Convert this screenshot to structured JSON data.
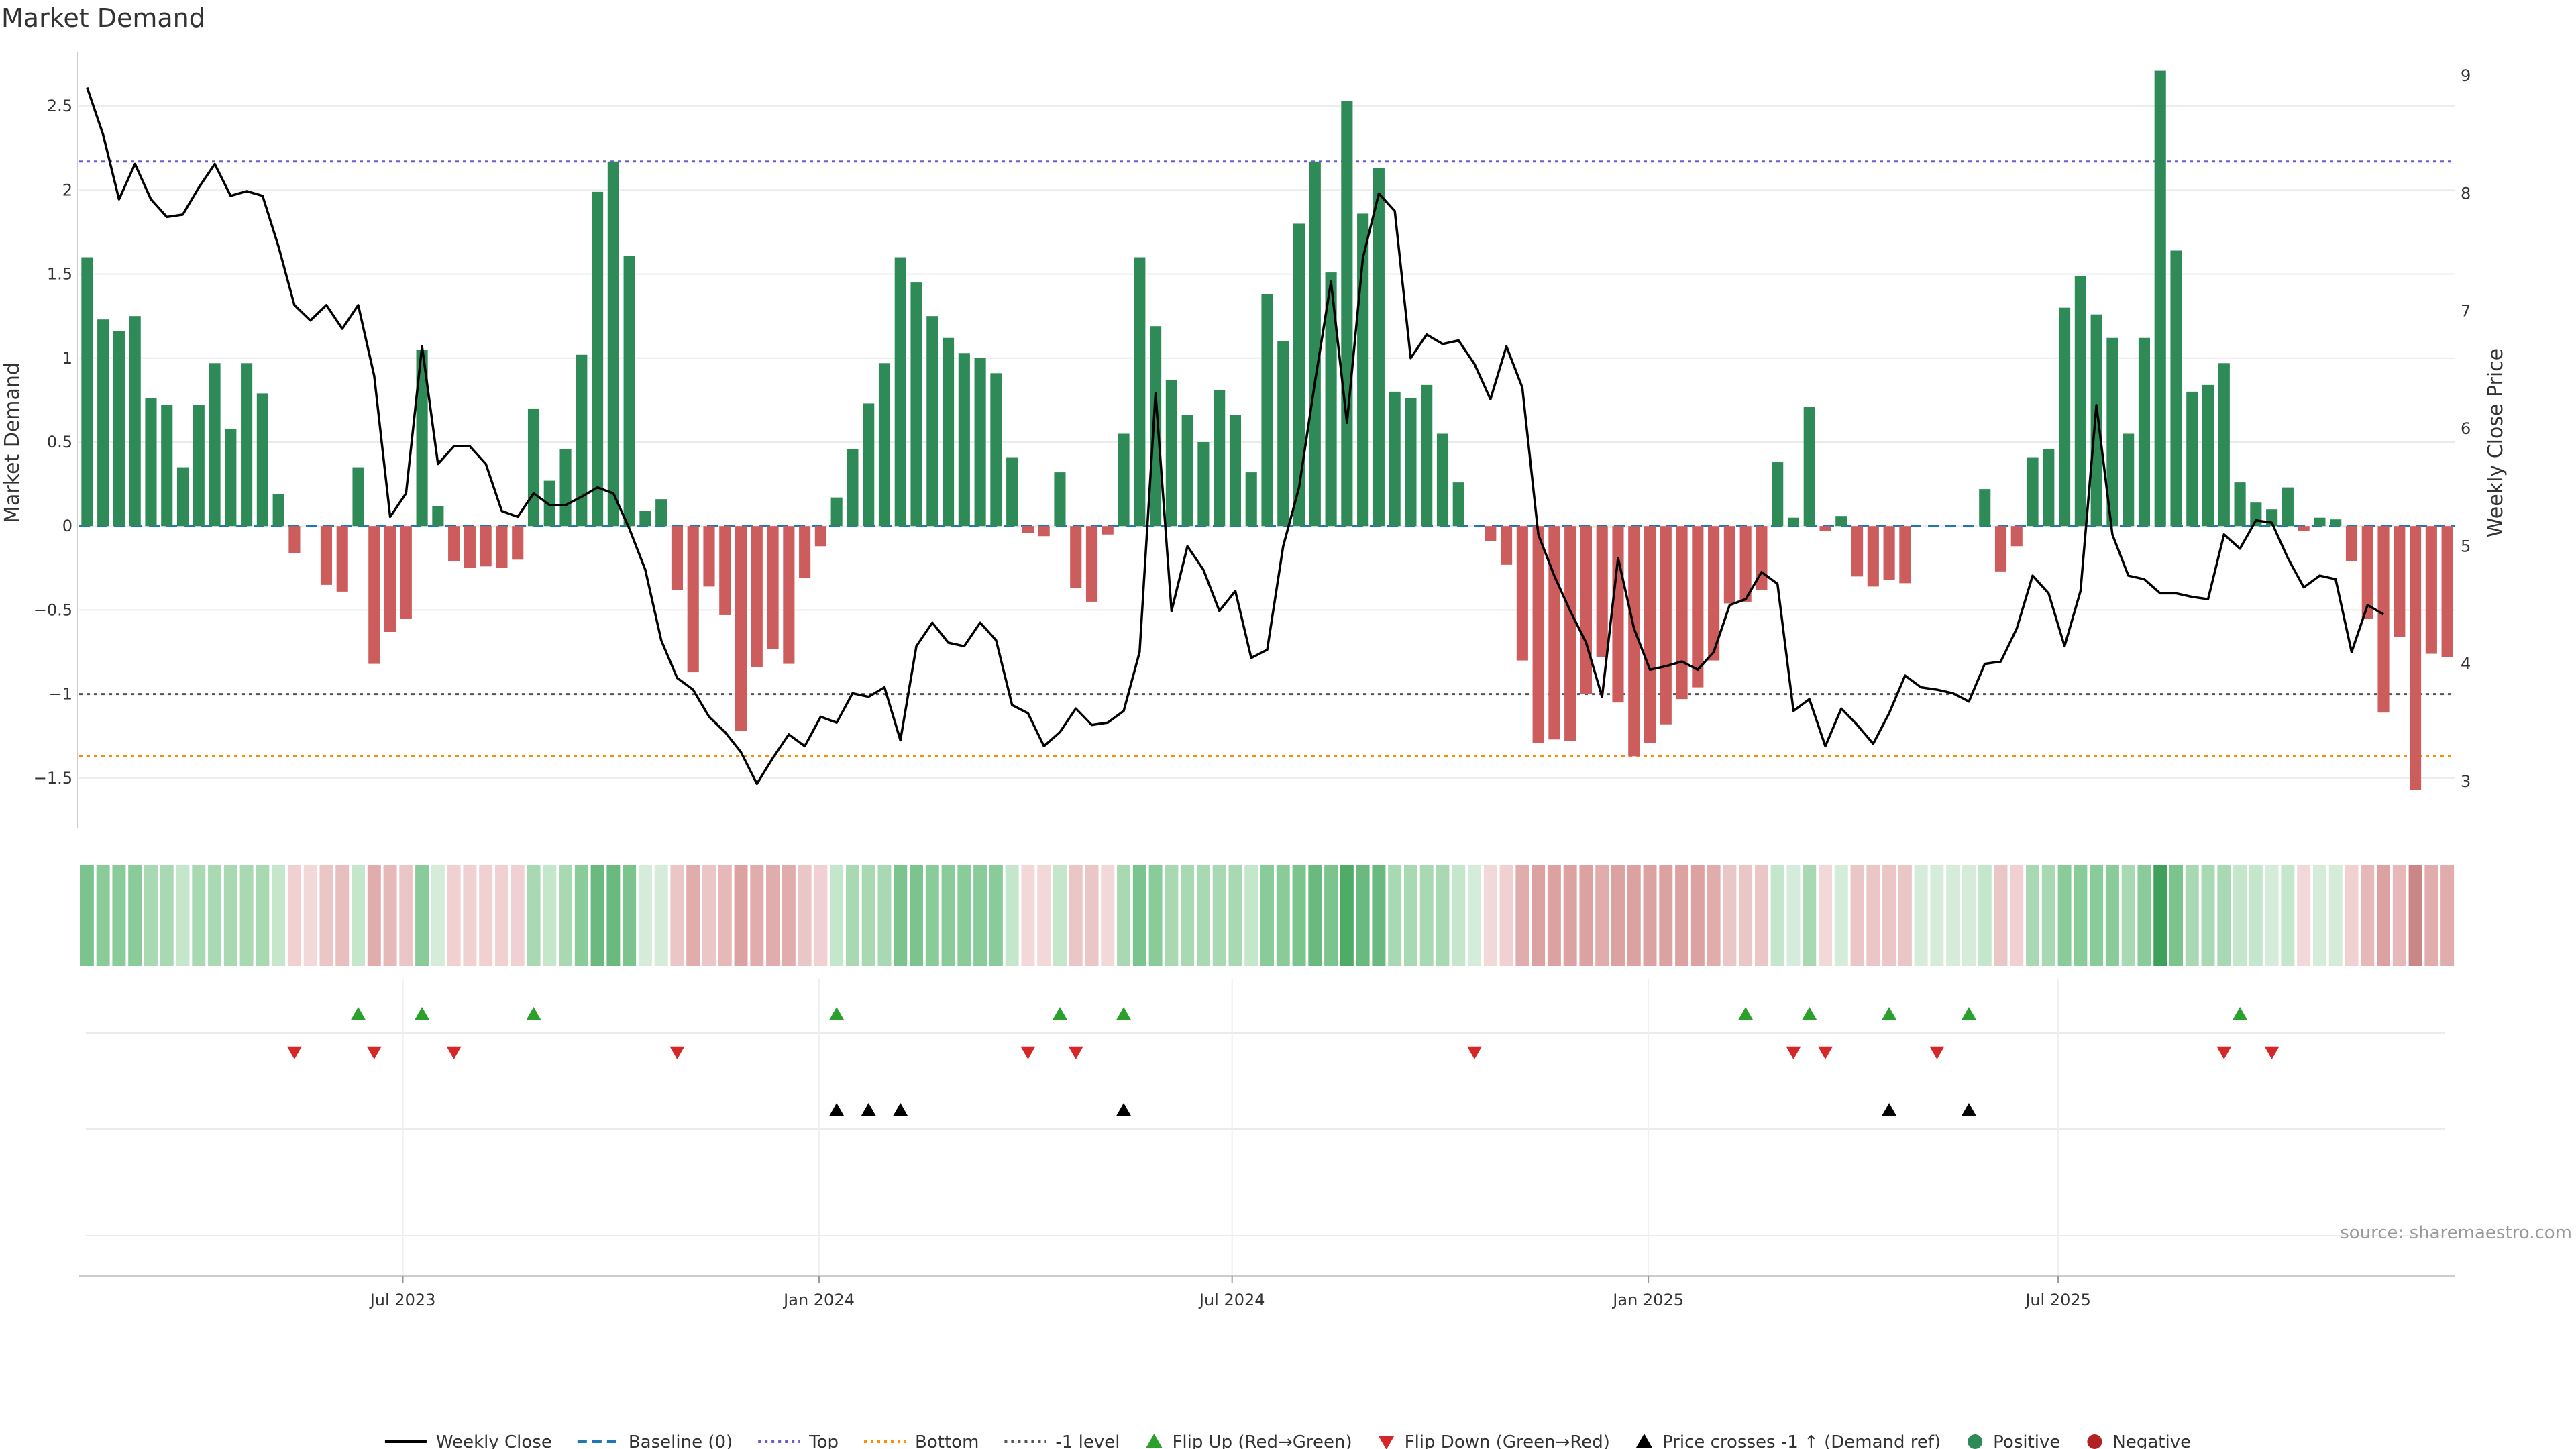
{
  "chart_data": {
    "type": "bar",
    "title": "Market Demand",
    "ylabel": "Market Demand",
    "y2label": "Weekly Close Price",
    "source": "source: sharemaestro.com",
    "ylim": [
      -1.8,
      2.82
    ],
    "y2lim": [
      2.6,
      9.2
    ],
    "y_ticks": [
      "2.5",
      "2",
      "1.5",
      "1",
      "0.5",
      "0",
      "−0.5",
      "−1",
      "−1.5"
    ],
    "y_tick_values": [
      2.5,
      2,
      1.5,
      1,
      0.5,
      0,
      -0.5,
      -1,
      -1.5
    ],
    "y2_ticks": [
      "9",
      "8",
      "7",
      "6",
      "5",
      "4",
      "3"
    ],
    "y2_tick_values": [
      9,
      8,
      7,
      6,
      5,
      4,
      3
    ],
    "x_ticks": [
      {
        "label": "Jul 2023",
        "week": 20.3
      },
      {
        "label": "Jan 2024",
        "week": 46.4
      },
      {
        "label": "Jul 2024",
        "week": 72.3
      },
      {
        "label": "Jan 2025",
        "week": 98.4
      },
      {
        "label": "Jul 2025",
        "week": 124.1
      }
    ],
    "reference_lines": {
      "top": 2.17,
      "bottom": -1.37,
      "minus_one": -1.0,
      "baseline": 0
    },
    "colors": {
      "positive": "#2e8b57",
      "negative": "#cd5c5c",
      "close": "#000000",
      "top": "#6a5acd",
      "bottom": "#ff8c00",
      "minus_one": "#555555",
      "baseline": "#1f77b4",
      "flip_up": "#2ca02c",
      "flip_down": "#d62728"
    },
    "demand": [
      1.6,
      1.23,
      1.16,
      1.25,
      0.76,
      0.72,
      0.35,
      0.72,
      0.97,
      0.58,
      0.97,
      0.79,
      0.19,
      -0.16,
      0.0,
      -0.35,
      -0.39,
      0.35,
      -0.82,
      -0.63,
      -0.55,
      1.05,
      0.12,
      -0.21,
      -0.25,
      -0.24,
      -0.25,
      -0.2,
      0.7,
      0.27,
      0.46,
      1.02,
      1.99,
      2.17,
      1.61,
      0.09,
      0.16,
      -0.38,
      -0.87,
      -0.36,
      -0.53,
      -1.22,
      -0.84,
      -0.73,
      -0.82,
      -0.31,
      -0.12,
      0.17,
      0.46,
      0.73,
      0.97,
      1.6,
      1.45,
      1.25,
      1.12,
      1.03,
      1.0,
      0.91,
      0.41,
      -0.04,
      -0.06,
      0.32,
      -0.37,
      -0.45,
      -0.05,
      0.55,
      1.6,
      1.19,
      0.87,
      0.66,
      0.5,
      0.81,
      0.66,
      0.32,
      1.38,
      1.1,
      1.8,
      2.17,
      1.51,
      2.53,
      1.86,
      2.13,
      0.8,
      0.76,
      0.84,
      0.55,
      0.26,
      0.0,
      -0.09,
      -0.23,
      -0.8,
      -1.29,
      -1.27,
      -1.28,
      -1.0,
      -0.78,
      -1.05,
      -1.37,
      -1.29,
      -1.18,
      -1.03,
      -0.96,
      -0.8,
      -0.46,
      -0.45,
      -0.38,
      0.38,
      0.05,
      0.71,
      -0.03,
      0.06,
      -0.3,
      -0.36,
      -0.32,
      -0.34,
      0.0,
      0.0,
      0.0,
      0.0,
      0.22,
      -0.27,
      -0.12,
      0.41,
      0.46,
      1.3,
      1.49,
      1.26,
      1.12,
      0.55,
      1.12,
      2.71,
      1.64,
      0.8,
      0.84,
      0.97,
      0.26,
      0.14,
      0.1,
      0.23,
      -0.03,
      0.05,
      0.04,
      -0.21,
      -0.55,
      -1.11,
      -0.66,
      -1.57,
      -0.76,
      -0.78
    ],
    "close": [
      8.9,
      8.5,
      7.95,
      8.25,
      7.95,
      7.8,
      7.82,
      8.05,
      8.25,
      7.98,
      8.02,
      7.98,
      7.55,
      7.05,
      6.92,
      7.05,
      6.85,
      7.05,
      6.45,
      5.25,
      5.45,
      6.7,
      5.7,
      5.85,
      5.85,
      5.7,
      5.3,
      5.25,
      5.45,
      5.35,
      5.35,
      5.42,
      5.5,
      5.45,
      5.15,
      4.8,
      4.2,
      3.88,
      3.78,
      3.55,
      3.42,
      3.25,
      2.98,
      3.2,
      3.4,
      3.3,
      3.55,
      3.5,
      3.75,
      3.72,
      3.8,
      3.35,
      4.15,
      4.35,
      4.18,
      4.15,
      4.35,
      4.2,
      3.65,
      3.58,
      3.3,
      3.42,
      3.62,
      3.48,
      3.5,
      3.6,
      4.1,
      6.3,
      4.45,
      5.0,
      4.8,
      4.45,
      4.62,
      4.05,
      4.12,
      5.0,
      5.5,
      6.4,
      7.25,
      6.05,
      7.45,
      8.0,
      7.85,
      6.6,
      6.8,
      6.72,
      6.75,
      6.55,
      6.25,
      6.7,
      6.35,
      5.1,
      4.75,
      4.45,
      4.18,
      3.72,
      4.9,
      4.3,
      3.95,
      3.98,
      4.02,
      3.95,
      4.1,
      4.5,
      4.55,
      4.78,
      4.68,
      3.6,
      3.7,
      3.3,
      3.62,
      3.48,
      3.32,
      3.58,
      3.9,
      3.8,
      3.78,
      3.75,
      3.68,
      4.0,
      4.02,
      4.3,
      4.75,
      4.6,
      4.15,
      4.62,
      6.2,
      5.1,
      4.75,
      4.72,
      4.6,
      4.6,
      4.57,
      4.55,
      5.1,
      4.98,
      5.22,
      5.2,
      4.9,
      4.65,
      4.75,
      4.72,
      4.1,
      4.5,
      4.42
    ],
    "strip_colors": [
      "#7cc48d",
      "#8acb9a",
      "#8acb9a",
      "#8acb9a",
      "#a8d9b3",
      "#a8d9b3",
      "#c4e6cb",
      "#a8d9b3",
      "#a8d9b3",
      "#a8d9b3",
      "#a8d9b3",
      "#a8d9b3",
      "#c4e6cb",
      "#f0d0d0",
      "#f2d8d8",
      "#eac6c6",
      "#e8bfbf",
      "#c4e6cb",
      "#e0acac",
      "#e6b8b8",
      "#eac6c6",
      "#8acb9a",
      "#d4ecd9",
      "#f0d0d0",
      "#f0d0d0",
      "#f0d0d0",
      "#f0d0d0",
      "#f0d0d0",
      "#a8d9b3",
      "#c4e6cb",
      "#a8d9b3",
      "#8acb9a",
      "#6ab97e",
      "#6ab97e",
      "#7cc48d",
      "#d4ecd9",
      "#d4ecd9",
      "#eac6c6",
      "#e0acac",
      "#eac6c6",
      "#e6b8b8",
      "#dca2a2",
      "#e0acac",
      "#e0acac",
      "#e0acac",
      "#eac6c6",
      "#f0d0d0",
      "#c4e6cb",
      "#a8d9b3",
      "#a8d9b3",
      "#a8d9b3",
      "#7cc48d",
      "#7cc48d",
      "#8acb9a",
      "#8acb9a",
      "#8acb9a",
      "#8acb9a",
      "#8acb9a",
      "#c4e6cb",
      "#f2d8d8",
      "#f2d8d8",
      "#c4e6cb",
      "#eac6c6",
      "#eac6c6",
      "#f2d8d8",
      "#a8d9b3",
      "#7cc48d",
      "#8acb9a",
      "#a8d9b3",
      "#a8d9b3",
      "#a8d9b3",
      "#a8d9b3",
      "#a8d9b3",
      "#c4e6cb",
      "#8acb9a",
      "#8acb9a",
      "#7cc48d",
      "#6ab97e",
      "#7cc48d",
      "#4fac67",
      "#6ab97e",
      "#6ab97e",
      "#a8d9b3",
      "#a8d9b3",
      "#a8d9b3",
      "#a8d9b3",
      "#c4e6cb",
      "#d4ecd9",
      "#f2d8d8",
      "#f0d0d0",
      "#e0acac",
      "#dca2a2",
      "#dca2a2",
      "#dca2a2",
      "#dca2a2",
      "#e0acac",
      "#dca2a2",
      "#dca2a2",
      "#dca2a2",
      "#dca2a2",
      "#dca2a2",
      "#dca2a2",
      "#e0acac",
      "#eac6c6",
      "#eac6c6",
      "#eac6c6",
      "#c4e6cb",
      "#d4ecd9",
      "#a8d9b3",
      "#f2d8d8",
      "#d4ecd9",
      "#eac6c6",
      "#eac6c6",
      "#eac6c6",
      "#eac6c6",
      "#d4ecd9",
      "#d4ecd9",
      "#d4ecd9",
      "#d4ecd9",
      "#c4e6cb",
      "#eac6c6",
      "#f0d0d0",
      "#a8d9b3",
      "#a8d9b3",
      "#8acb9a",
      "#8acb9a",
      "#8acb9a",
      "#8acb9a",
      "#a8d9b3",
      "#8acb9a",
      "#3ea05a",
      "#7cc48d",
      "#a8d9b3",
      "#a8d9b3",
      "#a8d9b3",
      "#c4e6cb",
      "#c4e6cb",
      "#d4ecd9",
      "#c4e6cb",
      "#f2d8d8",
      "#d4ecd9",
      "#d4ecd9",
      "#f0d0d0",
      "#e6b8b8",
      "#dca2a2",
      "#e6b8b8",
      "#c98787",
      "#e0acac",
      "#e0acac"
    ],
    "flip_up_weeks": [
      17,
      21,
      28,
      47,
      61,
      65,
      104,
      108,
      113,
      118,
      135
    ],
    "flip_down_weeks": [
      13,
      18,
      23,
      37,
      59,
      62,
      87,
      107,
      109,
      116,
      134,
      137
    ],
    "cross_weeks": [
      47,
      49,
      51,
      65,
      113,
      118
    ],
    "legend": [
      {
        "label": "Weekly Close",
        "kind": "line-solid",
        "color": "#000000"
      },
      {
        "label": "Baseline (0)",
        "kind": "line-dash",
        "color": "#1f77b4"
      },
      {
        "label": "Top",
        "kind": "line-dot",
        "color": "#6a5acd"
      },
      {
        "label": "Bottom",
        "kind": "line-dot",
        "color": "#ff8c00"
      },
      {
        "label": "-1 level",
        "kind": "line-dot",
        "color": "#555555"
      },
      {
        "label": "Flip Up (Red→Green)",
        "kind": "tri-up",
        "color": "#2ca02c"
      },
      {
        "label": "Flip Down (Green→Red)",
        "kind": "tri-down",
        "color": "#d62728"
      },
      {
        "label": "Price crosses -1 ↑ (Demand ref)",
        "kind": "tri-up",
        "color": "#000000"
      },
      {
        "label": "Positive",
        "kind": "dot",
        "color": "#2e8b57"
      },
      {
        "label": "Negative",
        "kind": "dot",
        "color": "#b22222"
      }
    ]
  }
}
